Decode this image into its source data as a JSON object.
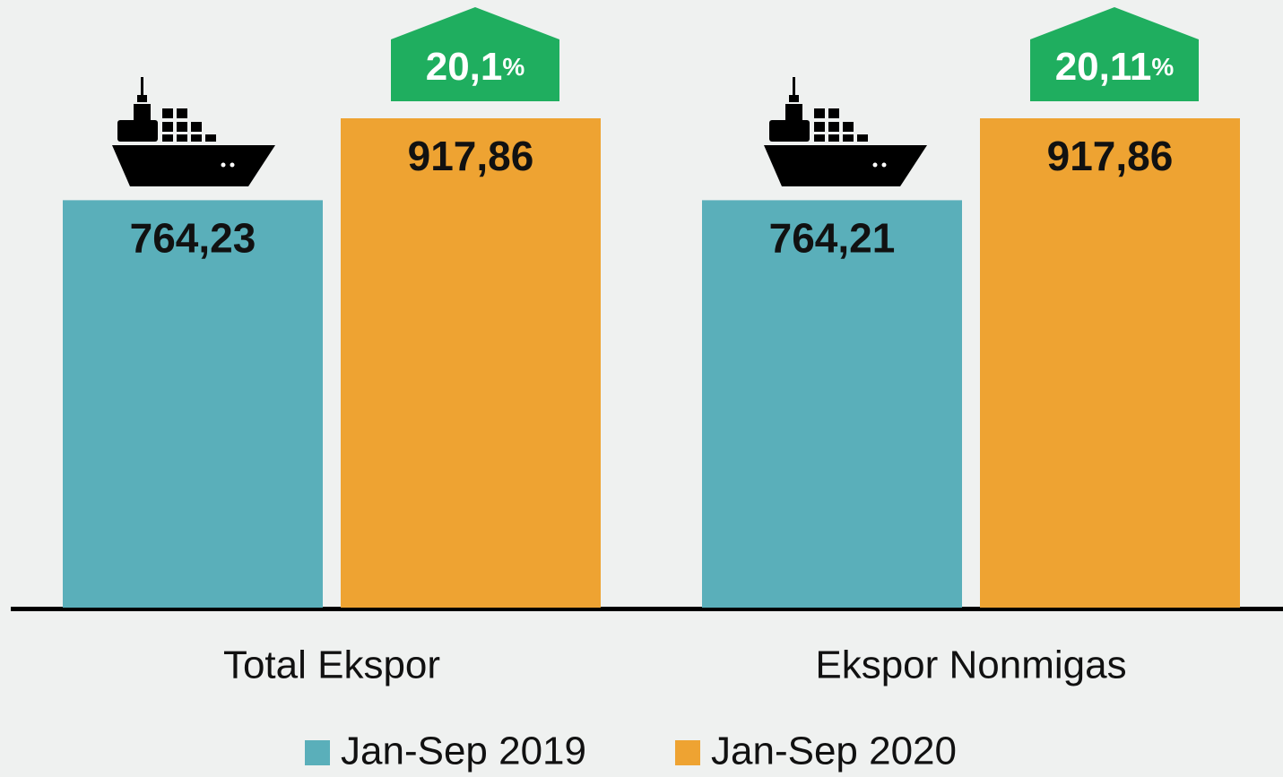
{
  "chart_data": {
    "type": "bar",
    "categories": [
      "Total Ekspor",
      "Ekspor Nonmigas"
    ],
    "series": [
      {
        "name": "Jan-Sep 2019",
        "color": "#5aafba",
        "values": [
          764.23,
          764.21
        ],
        "value_labels": [
          "764,23",
          "764,21"
        ]
      },
      {
        "name": "Jan-Sep 2020",
        "color": "#eea332",
        "values": [
          917.86,
          917.86
        ],
        "value_labels": [
          "917,86",
          "917,86"
        ]
      }
    ],
    "annotations": [
      "20,1%",
      "20,11%"
    ],
    "annotation_color": "#1fae5f"
  }
}
